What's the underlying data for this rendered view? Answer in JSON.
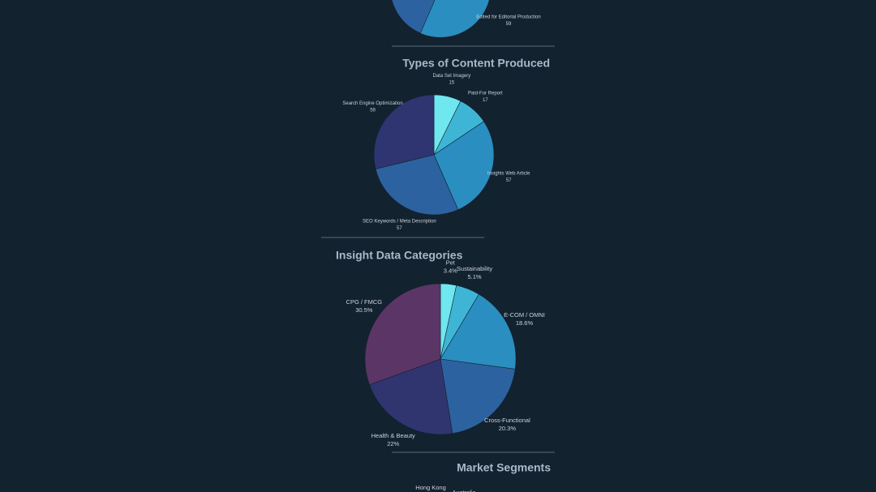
{
  "chart_data": [
    {
      "type": "pie",
      "categories": [
        "Edited for Editorial Production"
      ],
      "values": [
        59
      ],
      "colors": [
        "#2a8ec0"
      ]
    },
    {
      "type": "pie",
      "title": "Types of Content Produced",
      "categories": [
        "Data Set Imagery",
        "Paid-For Report",
        "Insights Web Article",
        "SEO Keywords / Meta Description",
        "Search Engine Optimization"
      ],
      "values": [
        15,
        17,
        57,
        57,
        59
      ],
      "colors": [
        "#6fe7ee",
        "#3fb5d6",
        "#2a8ec0",
        "#2d62a0",
        "#2f3570"
      ]
    },
    {
      "type": "pie",
      "title": "Insight Data Categories",
      "categories": [
        "Pet",
        "Sustainability",
        "E-COM / OMNI",
        "Cross-Functional",
        "Health & Beauty",
        "CPG / FMCG"
      ],
      "values": [
        3.4,
        5.1,
        18.6,
        20.3,
        22,
        30.5
      ],
      "value_labels": [
        "3.4%",
        "5.1%",
        "18.6%",
        "20.3%",
        "22%",
        "30.5%"
      ],
      "colors": [
        "#6fe7ee",
        "#3fb5d6",
        "#2a8ec0",
        "#2d62a0",
        "#303570",
        "#5b3566"
      ]
    },
    {
      "type": "pie",
      "title": "Market Segments",
      "categories": [
        "Hong Kong",
        "Australia"
      ]
    }
  ]
}
